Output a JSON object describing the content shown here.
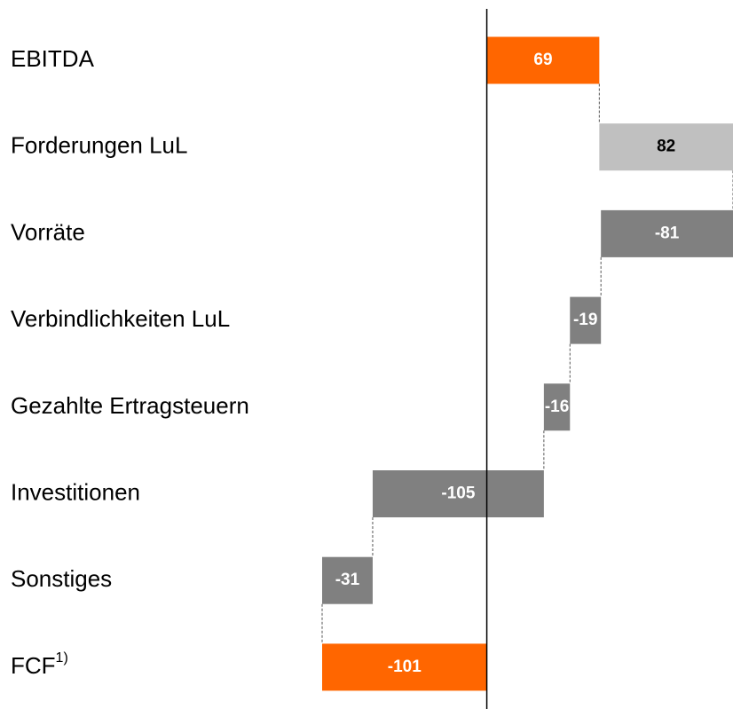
{
  "chart_data": {
    "type": "waterfall",
    "orientation": "horizontal",
    "categories": [
      "EBITDA",
      "Forderungen LuL",
      "Vorräte",
      "Verbindlichkeiten LuL",
      "Gezahlte Ertragsteuern",
      "Investitionen",
      "Sonstiges",
      "FCF"
    ],
    "category_superscripts": [
      null,
      null,
      null,
      null,
      null,
      null,
      null,
      "1)"
    ],
    "values": [
      69,
      82,
      -81,
      -19,
      -16,
      -105,
      -31,
      -101
    ],
    "is_total": [
      false,
      false,
      false,
      false,
      false,
      false,
      false,
      true
    ],
    "colors": [
      "#ff6600",
      "#c0c0c0",
      "#808080",
      "#808080",
      "#808080",
      "#808080",
      "#808080",
      "#ff6600"
    ],
    "label_colors": [
      "#ffffff",
      "#000000",
      "#ffffff",
      "#ffffff",
      "#ffffff",
      "#ffffff",
      "#ffffff",
      "#ffffff"
    ],
    "xlim": [
      -101,
      151
    ]
  }
}
